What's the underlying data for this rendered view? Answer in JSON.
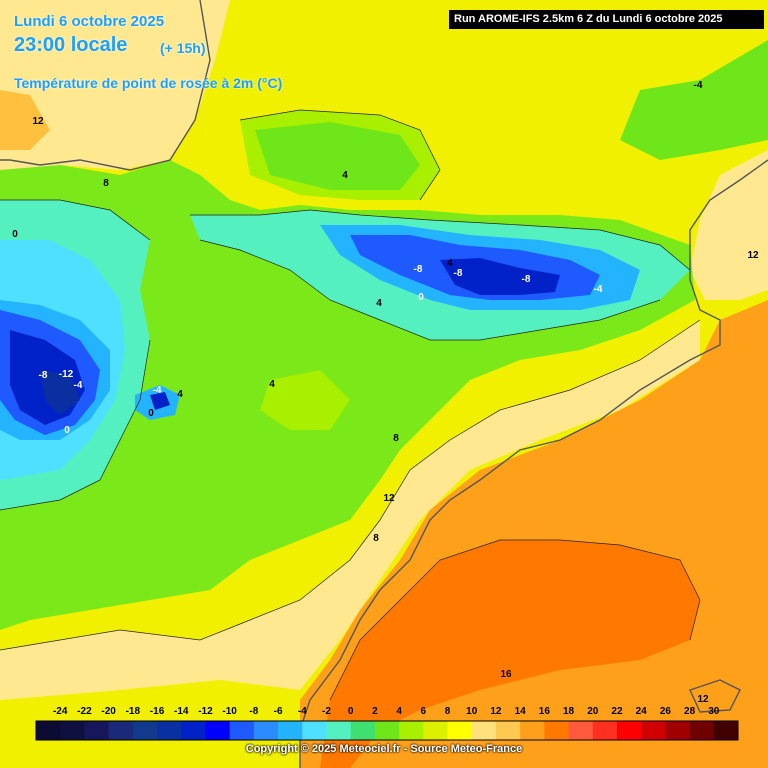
{
  "header": {
    "date": "Lundi 6 octobre 2025",
    "time": "23:00 locale",
    "lead": "(+ 15h)",
    "parameter": "Température de point de rosée à 2m (°C)"
  },
  "run_info": "Run AROME-IFS 2.5km 6 Z du Lundi 6 octobre 2025",
  "copyright": "Copyright © 2025 Meteociel.fr - Source Meteo-France",
  "legend": {
    "ticks": [
      "-24",
      "-22",
      "-20",
      "-18",
      "-16",
      "-14",
      "-12",
      "-10",
      "-8",
      "-6",
      "-4",
      "-2",
      "0",
      "2",
      "4",
      "6",
      "8",
      "10",
      "12",
      "14",
      "16",
      "18",
      "20",
      "22",
      "24",
      "26",
      "28",
      "30"
    ],
    "colors": [
      "#0b0b33",
      "#101040",
      "#16165a",
      "#1b2a78",
      "#123a8c",
      "#0a2fa0",
      "#0022c8",
      "#0000ff",
      "#1e5aff",
      "#2a8cff",
      "#24b4ff",
      "#50e0ff",
      "#54f0c0",
      "#40e070",
      "#6ee61a",
      "#a8f000",
      "#dcf000",
      "#ffff00",
      "#ffe07a",
      "#ffc850",
      "#ffa01a",
      "#ff7800",
      "#ff5a3c",
      "#ff3020",
      "#ff0000",
      "#d00000",
      "#a00000",
      "#700000",
      "#400000"
    ]
  },
  "map_labels": [
    {
      "text": "12"
    },
    {
      "text": "8"
    },
    {
      "text": "0"
    },
    {
      "text": "4"
    },
    {
      "text": "-4"
    },
    {
      "text": "-8"
    },
    {
      "text": "-8"
    },
    {
      "text": "-8"
    },
    {
      "text": "-4"
    },
    {
      "text": "0"
    },
    {
      "text": "4"
    },
    {
      "text": "-8"
    },
    {
      "text": "-12"
    },
    {
      "text": "-4"
    },
    {
      "text": "0"
    },
    {
      "text": "-4"
    },
    {
      "text": "0"
    },
    {
      "text": "4"
    },
    {
      "text": "4"
    },
    {
      "text": "8"
    },
    {
      "text": "12"
    },
    {
      "text": "8"
    },
    {
      "text": "16"
    },
    {
      "text": "12"
    },
    {
      "text": "12"
    },
    {
      "text": "4"
    },
    {
      "text": "-4"
    }
  ]
}
